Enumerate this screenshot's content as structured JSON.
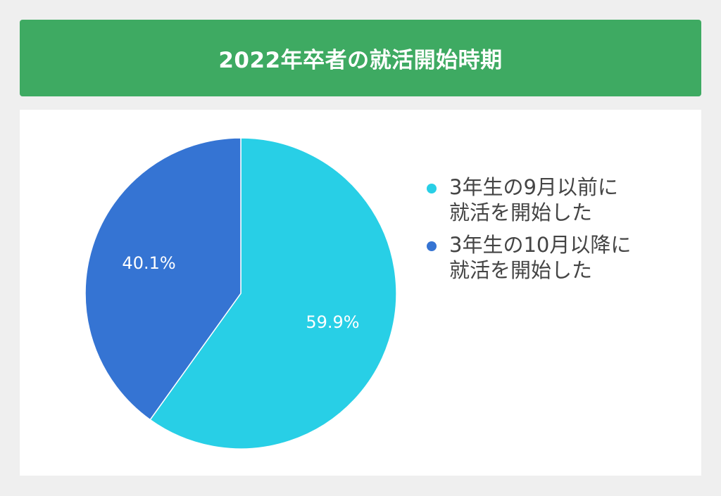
{
  "header": {
    "title": "2022年卒者の就活開始時期"
  },
  "chart_data": {
    "type": "pie",
    "title": "2022年卒者の就活開始時期",
    "slices": [
      {
        "label": "3年生の9月以前に\n就活を開始した",
        "value": 59.9,
        "display": "59.9%",
        "color": "#28cfe6"
      },
      {
        "label": "3年生の10月以降に\n就活を開始した",
        "value": 40.1,
        "display": "40.1%",
        "color": "#3574d3"
      }
    ],
    "legend_position": "right"
  }
}
